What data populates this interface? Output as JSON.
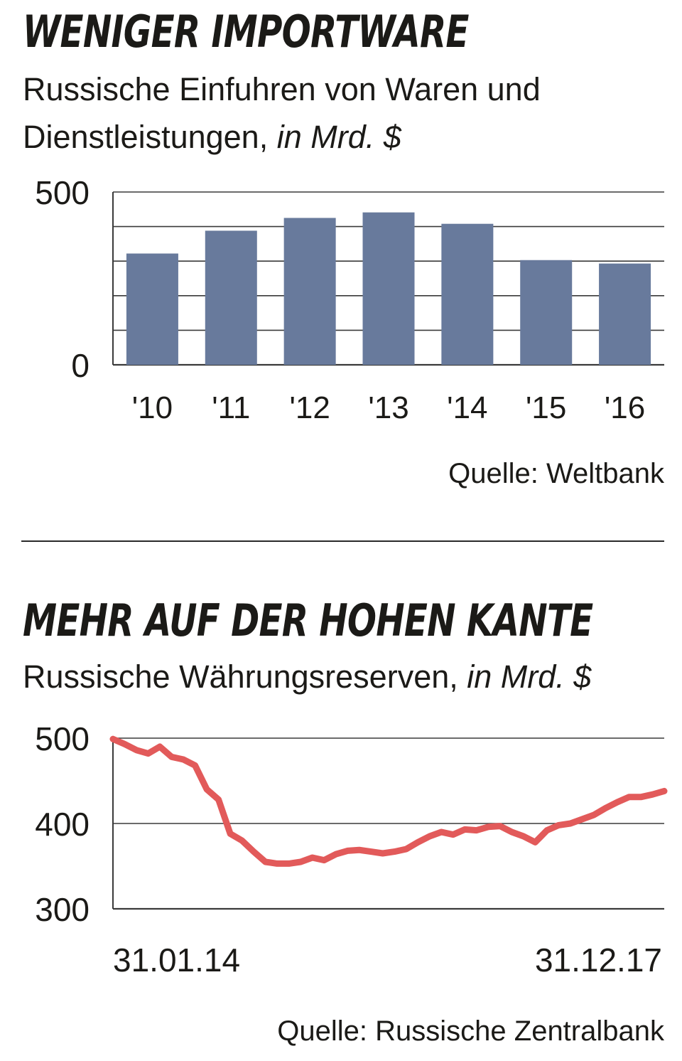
{
  "chart1": {
    "title": "WENIGER IMPORTWARE",
    "subtitle": "Russische Einfuhren von Waren und Dienstleistungen,",
    "unit": "in Mrd. $",
    "source": "Quelle: Weltbank"
  },
  "chart2": {
    "title": "MEHR AUF DER HOHEN KANTE",
    "subtitle": "Russische Währungsreserven,",
    "unit": "in Mrd. $",
    "source": "Quelle: Russische Zentralbank"
  },
  "colors": {
    "bar": "#687a9c",
    "line": "#e25a5a",
    "grid": "#3a3a3a"
  },
  "chart_data": [
    {
      "type": "bar",
      "title": "WENIGER IMPORTWARE",
      "subtitle": "Russische Einfuhren von Waren und Dienstleistungen, in Mrd. $",
      "categories": [
        "'10",
        "'11",
        "'12",
        "'13",
        "'14",
        "'15",
        "'16"
      ],
      "values": [
        322,
        388,
        425,
        441,
        408,
        303,
        293
      ],
      "ylim": [
        0,
        500
      ],
      "yticks": [
        0,
        100,
        200,
        300,
        400,
        500
      ],
      "ytick_labels": [
        "0",
        "",
        "",
        "",
        "",
        "500"
      ],
      "grid": true
    },
    {
      "type": "line",
      "title": "MEHR AUF DER HOHEN KANTE",
      "subtitle": "Russische Währungsreserven, in Mrd. $",
      "x_start_label": "31.01.14",
      "x_end_label": "31.12.17",
      "x": [
        "2014-01",
        "2014-02",
        "2014-03",
        "2014-04",
        "2014-05",
        "2014-06",
        "2014-07",
        "2014-08",
        "2014-09",
        "2014-10",
        "2014-11",
        "2014-12",
        "2015-01",
        "2015-02",
        "2015-03",
        "2015-04",
        "2015-05",
        "2015-06",
        "2015-07",
        "2015-08",
        "2015-09",
        "2015-10",
        "2015-11",
        "2015-12",
        "2016-01",
        "2016-02",
        "2016-03",
        "2016-04",
        "2016-05",
        "2016-06",
        "2016-07",
        "2016-08",
        "2016-09",
        "2016-10",
        "2016-11",
        "2016-12",
        "2017-01",
        "2017-02",
        "2017-03",
        "2017-04",
        "2017-05",
        "2017-06",
        "2017-07",
        "2017-08",
        "2017-09",
        "2017-10",
        "2017-11",
        "2017-12"
      ],
      "values": [
        499,
        493,
        486,
        482,
        490,
        478,
        475,
        468,
        440,
        428,
        388,
        380,
        367,
        355,
        353,
        353,
        355,
        360,
        357,
        364,
        368,
        369,
        367,
        365,
        367,
        370,
        378,
        385,
        390,
        387,
        393,
        392,
        396,
        397,
        390,
        385,
        378,
        392,
        398,
        400,
        405,
        410,
        418,
        425,
        431,
        431,
        434,
        438
      ],
      "ylim": [
        300,
        500
      ],
      "yticks": [
        300,
        400,
        500
      ],
      "grid": true
    }
  ]
}
